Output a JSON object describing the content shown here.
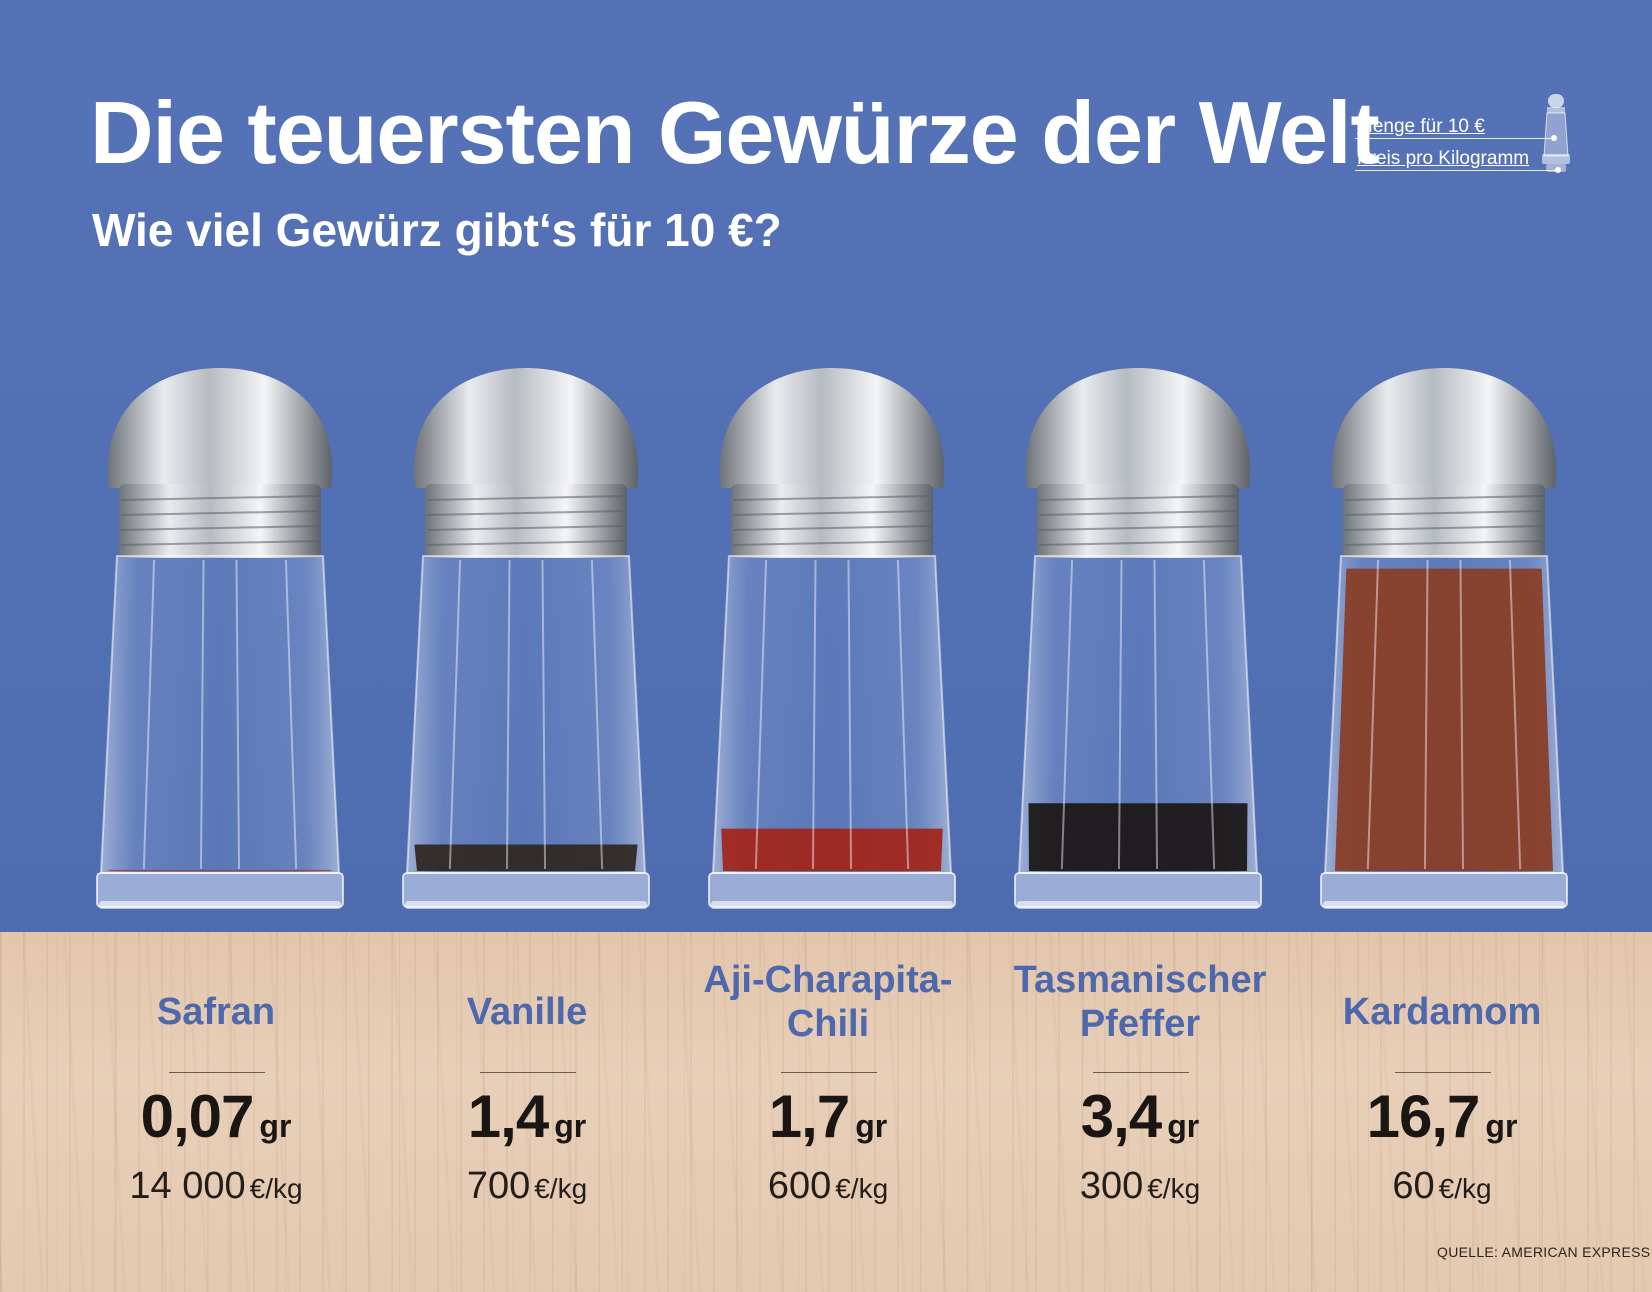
{
  "header": {
    "title": "Die teuersten Gewürze der Welt",
    "subtitle": "Wie viel Gewürz gibt‘s für 10 €?"
  },
  "legend": {
    "quantity_label": "Menge für 10 €",
    "price_label": "Preis pro Kilogramm"
  },
  "spices": [
    {
      "name_line1": "Safran",
      "name_line2": "",
      "amount": "0,07",
      "amount_unit": "gr",
      "price": "14 000",
      "price_unit": "€/kg",
      "fill_color": "#b3401c",
      "fill_fraction": 0.01
    },
    {
      "name_line1": "Vanille",
      "name_line2": "",
      "amount": "1,4",
      "amount_unit": "gr",
      "price": "700",
      "price_unit": "€/kg",
      "fill_color": "#2f2620",
      "fill_fraction": 0.09
    },
    {
      "name_line1": "Aji-Charapita-",
      "name_line2": "Chili",
      "amount": "1,7",
      "amount_unit": "gr",
      "price": "600",
      "price_unit": "€/kg",
      "fill_color": "#a32418",
      "fill_fraction": 0.14
    },
    {
      "name_line1": "Tasmanischer",
      "name_line2": "Pfeffer",
      "amount": "3,4",
      "amount_unit": "gr",
      "price": "300",
      "price_unit": "€/kg",
      "fill_color": "#1b1613",
      "fill_fraction": 0.22
    },
    {
      "name_line1": "Kardamom",
      "name_line2": "",
      "amount": "16,7",
      "amount_unit": "gr",
      "price": "60",
      "price_unit": "€/kg",
      "fill_color": "#8a3d24",
      "fill_fraction": 0.96
    }
  ],
  "source": "QUELLE: AMERICAN EXPRESS / GRA"
}
